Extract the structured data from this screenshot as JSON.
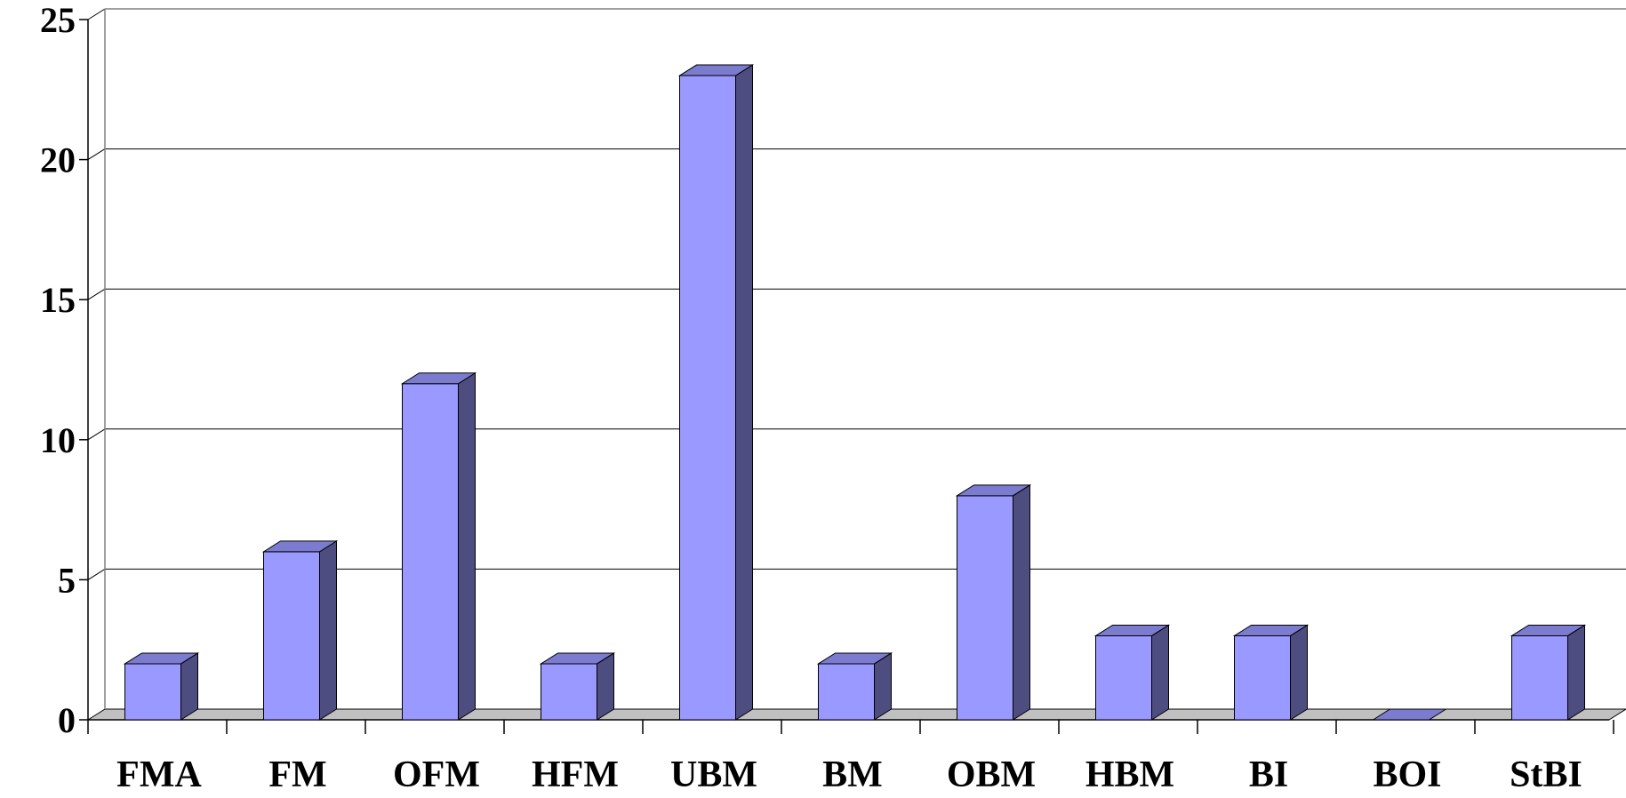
{
  "colors": {
    "bar_front": "#9999ff",
    "bar_side": "#4d4d80",
    "bar_top": "#7b7bcf",
    "floor": "#c0c0c0",
    "gridline": "#000000",
    "wall_edge": "#808080"
  },
  "chart_data": {
    "type": "bar",
    "style": "3d-column",
    "title": "",
    "xlabel": "",
    "ylabel": "",
    "categories": [
      "FMA",
      "FM",
      "OFM",
      "HFM",
      "UBM",
      "BM",
      "OBM",
      "HBM",
      "BI",
      "BOI",
      "StBI"
    ],
    "values": [
      2,
      6,
      12,
      2,
      23,
      2,
      8,
      3,
      3,
      0,
      3
    ],
    "ylim": [
      0,
      25
    ],
    "yticks": [
      "0",
      "5",
      "10",
      "15",
      "20",
      "25"
    ],
    "grid": true,
    "legend": "none"
  }
}
